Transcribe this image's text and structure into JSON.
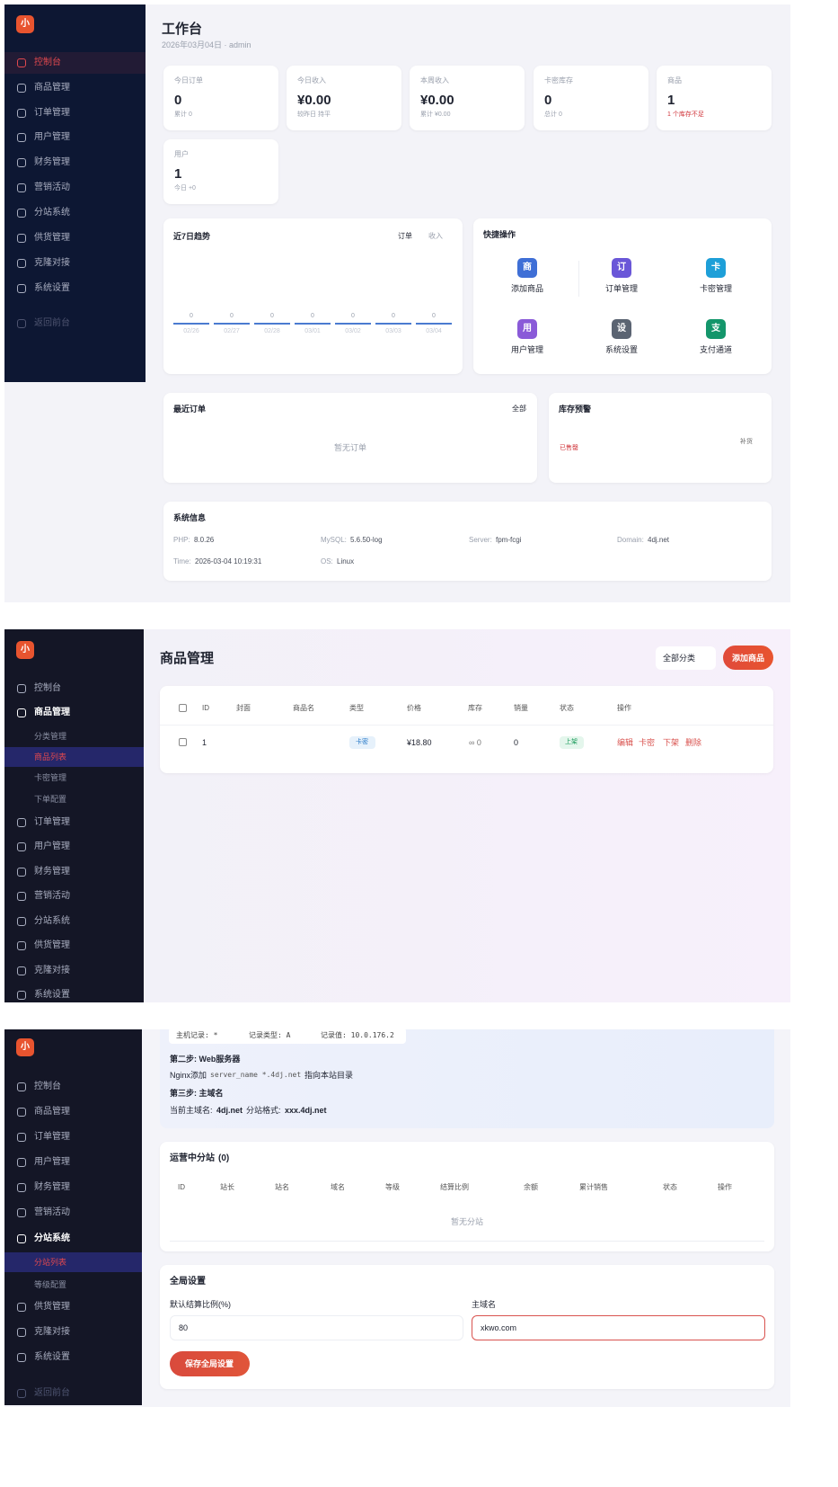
{
  "screens": [
    {
      "sidebar": {
        "logo": "小",
        "items": [
          "控制台",
          "商品管理",
          "订单管理",
          "用户管理",
          "财务管理",
          "营销活动",
          "分站系统",
          "供货管理",
          "克隆对接",
          "系统设置",
          "返回前台"
        ]
      },
      "header": {
        "title": "工作台",
        "subtitle": "2026年03月04日 · admin"
      },
      "stats": [
        {
          "label": "今日订单",
          "value": "0",
          "note": "累计 0"
        },
        {
          "label": "今日收入",
          "value": "¥0.00",
          "note": "较昨日 持平"
        },
        {
          "label": "本周收入",
          "value": "¥0.00",
          "note": "累计 ¥0.00"
        },
        {
          "label": "卡密库存",
          "value": "0",
          "note": "总计 0"
        },
        {
          "label": "商品",
          "value": "1",
          "note": "1 个库存不足"
        },
        {
          "label": "用户",
          "value": "1",
          "note": "今日 +0"
        }
      ],
      "trend": {
        "title": "近7日趋势",
        "tabs": [
          "订单",
          "收入"
        ],
        "categories": [
          "02/26",
          "02/27",
          "02/28",
          "03/01",
          "03/02",
          "03/03",
          "03/04"
        ],
        "values": [
          0,
          0,
          0,
          0,
          0,
          0,
          0
        ]
      },
      "quick": {
        "title": "快捷操作",
        "actions": [
          {
            "icon": "商",
            "label": "添加商品"
          },
          {
            "icon": "订",
            "label": "订单管理"
          },
          {
            "icon": "卡",
            "label": "卡密管理"
          },
          {
            "icon": "用",
            "label": "用户管理"
          },
          {
            "icon": "设",
            "label": "系统设置"
          },
          {
            "icon": "支",
            "label": "支付通道"
          }
        ]
      },
      "recent_orders": {
        "title": "最近订单",
        "link": "全部",
        "empty": "暂无订单"
      },
      "stock_alert": {
        "title": "库存预警",
        "status": "已售罄",
        "action": "补货"
      },
      "system_info": {
        "title": "系统信息",
        "items": [
          {
            "label": "PHP:",
            "value": "8.0.26"
          },
          {
            "label": "MySQL:",
            "value": "5.6.50-log"
          },
          {
            "label": "Server:",
            "value": "fpm-fcgi"
          },
          {
            "label": "Domain:",
            "value": "4dj.net"
          },
          {
            "label": "Time:",
            "value": "2026-03-04 10:19:31"
          },
          {
            "label": "OS:",
            "value": "Linux"
          }
        ]
      }
    },
    {
      "sidebar": {
        "logo": "小",
        "items": [
          "控制台",
          "商品管理",
          "分类管理",
          "商品列表",
          "卡密管理",
          "下单配置",
          "订单管理",
          "用户管理",
          "财务管理",
          "营销活动",
          "分站系统",
          "供货管理",
          "克隆对接",
          "系统设置"
        ]
      },
      "header": {
        "title": "商品管理",
        "filter": "全部分类",
        "add_button": "添加商品"
      },
      "table": {
        "columns": [
          "ID",
          "封面",
          "商品名",
          "类型",
          "价格",
          "库存",
          "销量",
          "状态",
          "操作"
        ],
        "rows": [
          {
            "id": "1",
            "type": "卡密",
            "price": "¥18.80",
            "stock": "∞ 0",
            "sales": "0",
            "status": "上架",
            "actions": [
              "编辑",
              "卡密",
              "下架",
              "删除"
            ]
          }
        ]
      }
    },
    {
      "sidebar": {
        "logo": "小",
        "items": [
          "控制台",
          "商品管理",
          "订单管理",
          "用户管理",
          "财务管理",
          "营销活动",
          "分站系统",
          "分站列表",
          "等级配置",
          "供货管理",
          "克隆对接",
          "系统设置",
          "返回前台"
        ]
      },
      "dns_guide": {
        "record_host": "主机记录: *",
        "record_type": "记录类型: A",
        "record_value": "记录值: 10.0.176.2",
        "step2": "第二步: Web服务器",
        "nginx_prefix": "Nginx添加",
        "nginx_code": "server_name *.4dj.net",
        "nginx_suffix": "指向本站目录",
        "step3": "第三步: 主域名",
        "main_domain_label": "当前主域名:",
        "main_domain": "4dj.net",
        "format_label": "分站格式:",
        "format": "xxx.4dj.net"
      },
      "substations": {
        "title": "运营中分站",
        "count": "(0)",
        "columns": [
          "ID",
          "站长",
          "站名",
          "域名",
          "等级",
          "结算比例",
          "余额",
          "累计销售",
          "状态",
          "操作"
        ],
        "empty": "暂无分站"
      },
      "global_settings": {
        "title": "全局设置",
        "fields": [
          {
            "label": "默认结算比例(%)",
            "value": "80"
          },
          {
            "label": "主域名",
            "value": "xkwo.com"
          }
        ],
        "save_button": "保存全局设置"
      }
    }
  ]
}
